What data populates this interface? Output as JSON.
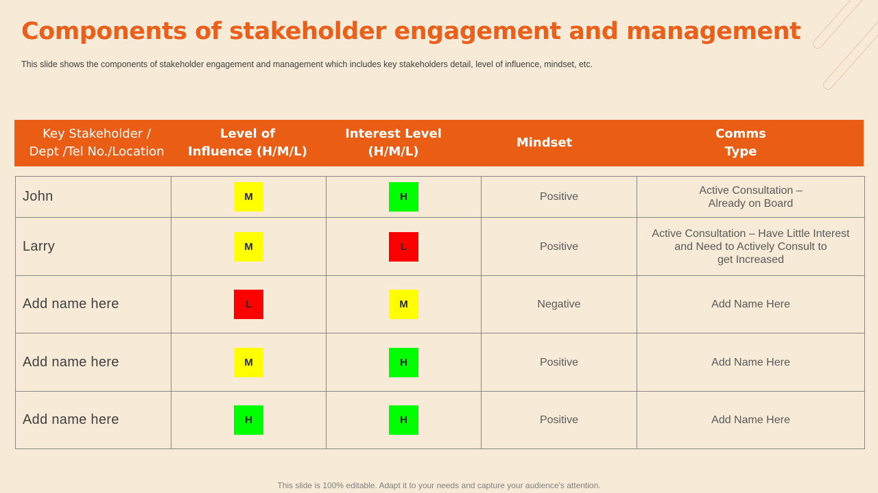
{
  "title": "Components of stakeholder engagement and management",
  "subtitle": "This slide shows the components of stakeholder engagement  and management  which includes key stakeholders detail, level of influence,  mindset, etc.",
  "colors": {
    "accent": "#e95d14",
    "background": "#f7ead7",
    "level_H": "#00ff00",
    "level_M": "#ffff00",
    "level_L": "#ff0000"
  },
  "table": {
    "headers": [
      "Key Stakeholder /\nDept /Tel No./Location",
      "Level of\nInfluence (H/M/L)",
      "Interest Level\n(H/M/L)",
      "Mindset",
      "Comms\nType"
    ],
    "rows": [
      {
        "name": "John",
        "influence": "M",
        "interest": "H",
        "mindset": "Positive",
        "comms": "Active Consultation –\nAlready on Board"
      },
      {
        "name": "Larry",
        "influence": "M",
        "interest": "L",
        "mindset": "Positive",
        "comms": "Active Consultation  – Have Little Interest\nand Need to Actively  Consult to\nget Increased"
      },
      {
        "name": "Add  name  here",
        "influence": "L",
        "interest": "M",
        "mindset": "Negative",
        "comms": "Add Name Here"
      },
      {
        "name": "Add  name  here",
        "influence": "M",
        "interest": "H",
        "mindset": "Positive",
        "comms": "Add Name Here"
      },
      {
        "name": "Add  name  here",
        "influence": "H",
        "interest": "H",
        "mindset": "Positive",
        "comms": "Add Name Here"
      }
    ]
  },
  "footer": "This slide is 100% editable. Adapt it to your needs and capture your audience's attention."
}
